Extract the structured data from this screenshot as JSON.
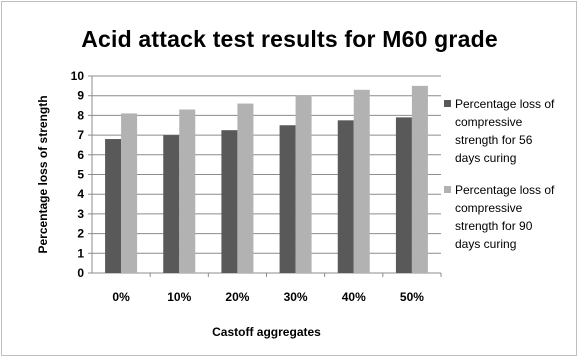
{
  "chart_data": {
    "type": "bar",
    "title": "Acid attack test results for M60 grade",
    "xlabel": "Castoff aggregates",
    "ylabel": "Percentage loss of strength",
    "categories": [
      "0%",
      "10%",
      "20%",
      "30%",
      "40%",
      "50%"
    ],
    "ylim": [
      0,
      10
    ],
    "yticks": [
      "0",
      "1",
      "2",
      "3",
      "4",
      "5",
      "6",
      "7",
      "8",
      "9",
      "10"
    ],
    "grid": true,
    "legend_position": "right",
    "series": [
      {
        "name": "Percentage loss of compressive strength for 56 days curing",
        "legend_lines": [
          "Percentage loss of",
          "compressive",
          "strength for 56",
          "days curing"
        ],
        "color": "#595959",
        "values": [
          6.8,
          7.0,
          7.25,
          7.5,
          7.75,
          7.9
        ]
      },
      {
        "name": "Percentage loss of compressive strength for 90 days curing",
        "legend_lines": [
          "Percentage loss of",
          "compressive",
          "strength for 90",
          "days curing"
        ],
        "color": "#b2b2b2",
        "values": [
          8.1,
          8.3,
          8.6,
          9.0,
          9.3,
          9.5
        ]
      }
    ]
  }
}
